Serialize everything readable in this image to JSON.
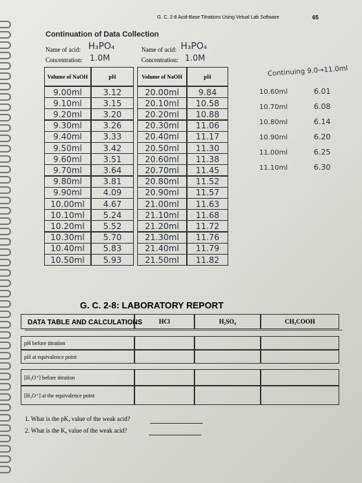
{
  "header": {
    "running_title": "G. C. 2-8 Acid-Base Titrations Using Virtual Lab Software",
    "page_number": "65"
  },
  "section_title": "Continuation of Data Collection",
  "left_form": {
    "acid_label": "Name of acid:",
    "acid": "H₃PO₄",
    "concentration_label": "Concentration:",
    "concentration": "1.0M",
    "table": {
      "headers": [
        "Volume of NaOH",
        "pH"
      ],
      "rows": [
        [
          "9.00ml",
          "3.12"
        ],
        [
          "9.10ml",
          "3.15"
        ],
        [
          "9.20ml",
          "3.20"
        ],
        [
          "9.30ml",
          "3.26"
        ],
        [
          "9.40ml",
          "3.33"
        ],
        [
          "9.50ml",
          "3.42"
        ],
        [
          "9.60ml",
          "3.51"
        ],
        [
          "9.70ml",
          "3.64"
        ],
        [
          "9.80ml",
          "3.81"
        ],
        [
          "9.90ml",
          "4.09"
        ],
        [
          "10.00ml",
          "4.67"
        ],
        [
          "10.10ml",
          "5.24"
        ],
        [
          "10.20ml",
          "5.52"
        ],
        [
          "10.30ml",
          "5.70"
        ],
        [
          "10.40ml",
          "5.83"
        ],
        [
          "10.50ml",
          "5.93"
        ]
      ]
    }
  },
  "right_form": {
    "acid_label": "Name of acid:",
    "acid": "H₃PO₄",
    "concentration_label": "Concentration:",
    "concentration": "1.0M",
    "table": {
      "headers": [
        "Volume of NaOH",
        "pH"
      ],
      "rows": [
        [
          "20.00ml",
          "9.84"
        ],
        [
          "20.10ml",
          "10.58"
        ],
        [
          "20.20ml",
          "10.88"
        ],
        [
          "20.30ml",
          "11.06"
        ],
        [
          "20.40ml",
          "11.17"
        ],
        [
          "20.50ml",
          "11.30"
        ],
        [
          "20.60ml",
          "11.38"
        ],
        [
          "20.70ml",
          "11.45"
        ],
        [
          "20.80ml",
          "11.52"
        ],
        [
          "20.90ml",
          "11.57"
        ],
        [
          "21.00ml",
          "11.63"
        ],
        [
          "21.10ml",
          "11.68"
        ],
        [
          "21.20ml",
          "11.72"
        ],
        [
          "21.30ml",
          "11.76"
        ],
        [
          "21.40ml",
          "11.79"
        ],
        [
          "21.50ml",
          "11.82"
        ]
      ]
    }
  },
  "side_note": {
    "title": "Continuing 9.0→11.0ml",
    "rows": [
      [
        "10.60ml",
        "6.01"
      ],
      [
        "10.70ml",
        "6.08"
      ],
      [
        "10.80ml",
        "6.14"
      ],
      [
        "10.90ml",
        "6.20"
      ],
      [
        "11.00ml",
        "6.25"
      ],
      [
        "11.10ml",
        "6.30"
      ]
    ]
  },
  "report": {
    "title": "G. C. 2-8: LABORATORY REPORT",
    "subtitle": "DATA TABLE AND CALCULATIONS",
    "table": {
      "columns": [
        "HCl",
        "H₂SO₄",
        "CH₃COOH"
      ],
      "row_labels": [
        "pH before titration",
        "pH at equivalence point",
        "[H₃O⁺] before titration",
        "[H₃O⁺] at the equivalence point"
      ]
    }
  },
  "questions": [
    "1. What is the pKₐ value of the weak acid?",
    "2. What is the Kₐ value of the weak acid?"
  ]
}
